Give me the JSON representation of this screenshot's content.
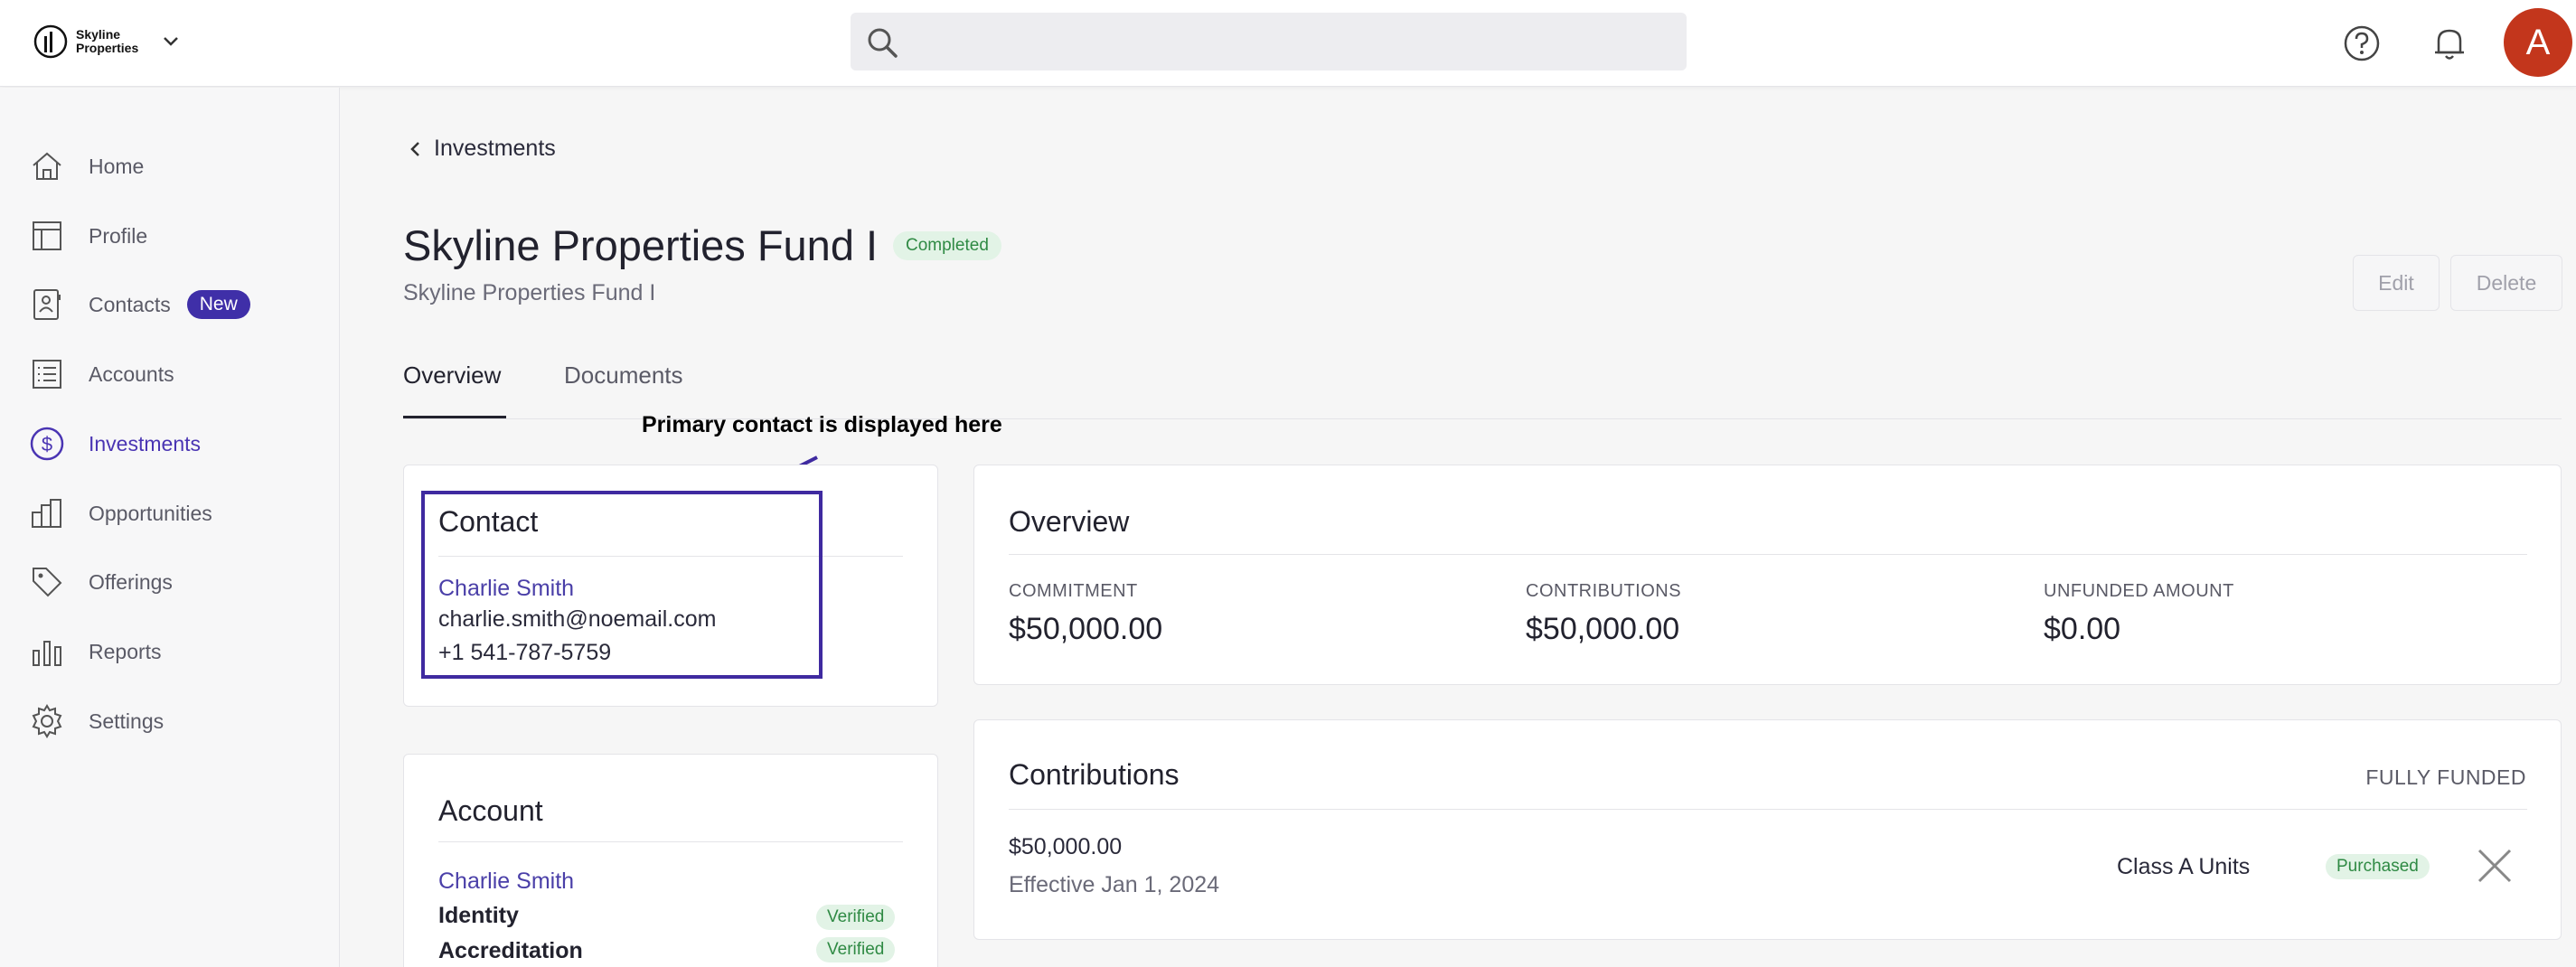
{
  "brand": {
    "logo_text": "Skyline Properties"
  },
  "header": {
    "avatar_initial": "A"
  },
  "sidebar": {
    "items": [
      {
        "label": "Home"
      },
      {
        "label": "Profile"
      },
      {
        "label": "Contacts",
        "badge": "New"
      },
      {
        "label": "Accounts"
      },
      {
        "label": "Investments"
      },
      {
        "label": "Opportunities"
      },
      {
        "label": "Offerings"
      },
      {
        "label": "Reports"
      },
      {
        "label": "Settings"
      }
    ]
  },
  "breadcrumb": {
    "label": "Investments"
  },
  "page": {
    "title": "Skyline Properties Fund I",
    "status": "Completed",
    "subtitle": "Skyline Properties Fund I",
    "edit_label": "Edit",
    "delete_label": "Delete"
  },
  "tabs": [
    {
      "label": "Overview"
    },
    {
      "label": "Documents"
    }
  ],
  "annotation": "Primary contact is displayed here",
  "contact": {
    "title": "Contact",
    "name": "Charlie Smith",
    "email": "charlie.smith@noemail.com",
    "phone": "+1 541-787-5759"
  },
  "account": {
    "title": "Account",
    "name": "Charlie Smith",
    "identity_label": "Identity",
    "identity_status": "Verified",
    "accreditation_label": "Accreditation",
    "accreditation_status": "Verified"
  },
  "overview": {
    "title": "Overview",
    "commitment_label": "COMMITMENT",
    "commitment_value": "$50,000.00",
    "contributions_label": "CONTRIBUTIONS",
    "contributions_value": "$50,000.00",
    "unfunded_label": "UNFUNDED AMOUNT",
    "unfunded_value": "$0.00"
  },
  "contributions": {
    "title": "Contributions",
    "status": "FULLY FUNDED",
    "amount": "$50,000.00",
    "effective": "Effective Jan 1, 2024",
    "unit_class": "Class A Units",
    "purchase_status": "Purchased"
  },
  "colors": {
    "accent": "#4a35b3",
    "avatar": "#c3361c",
    "success": "#2f8a44"
  }
}
